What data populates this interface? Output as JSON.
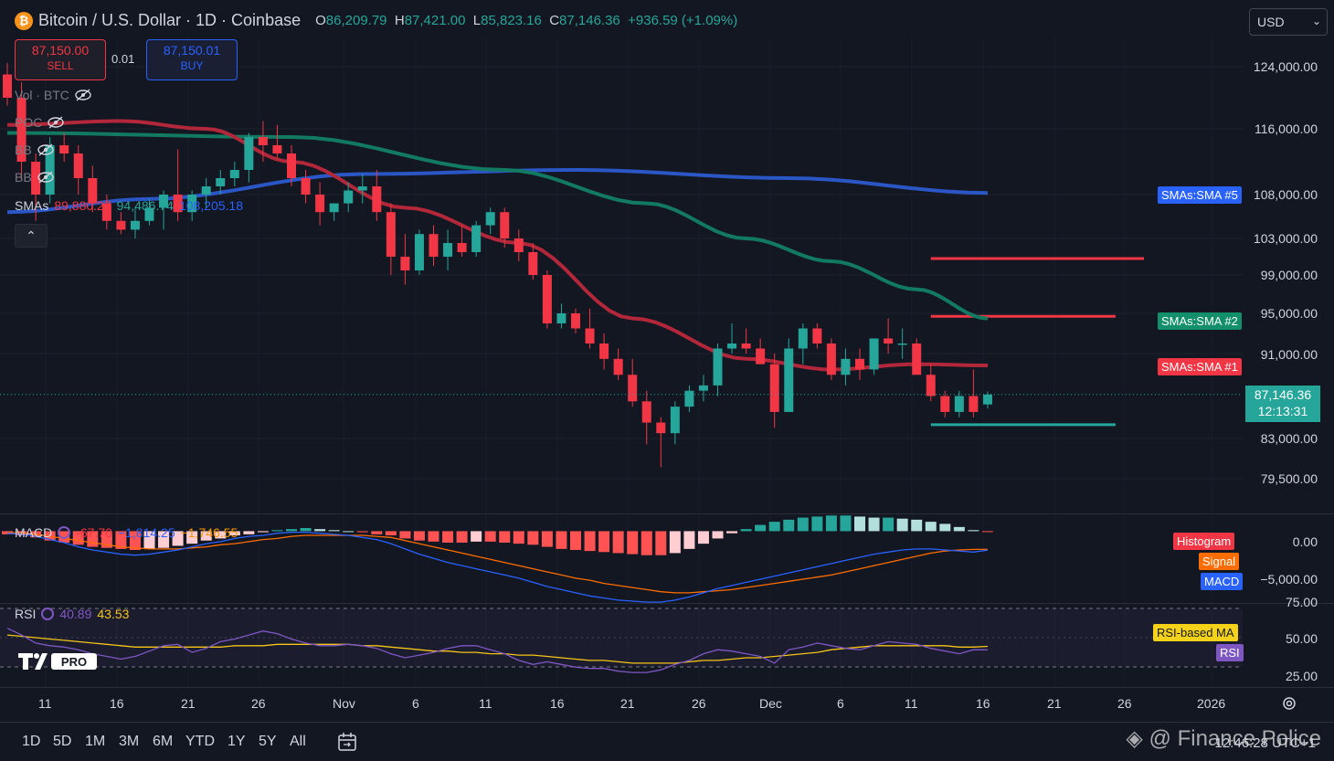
{
  "header": {
    "symbol_title": "Bitcoin / U.S. Dollar · 1D · Coinbase",
    "open_key": "O",
    "open": "86,209.79",
    "high_key": "H",
    "high": "87,421.00",
    "low_key": "L",
    "low": "85,823.16",
    "close_key": "C",
    "close": "87,146.36",
    "change": "+936.59 (+1.09%)",
    "currency": "USD"
  },
  "trade": {
    "sell_price": "87,150.00",
    "sell_label": "SELL",
    "buy_price": "87,150.01",
    "buy_label": "BUY",
    "spread": "0.01"
  },
  "indicators": {
    "vol": "Vol · BTC",
    "poc": "POC",
    "bb1": "BB",
    "bb2": "BB",
    "smas_label": "SMAs",
    "sma1": "89,880.27",
    "sma2": "94,486.74",
    "sma5": "108,205.18"
  },
  "price_axis": [
    "124,000.00",
    "116,000.00",
    "108,000.00",
    "103,000.00",
    "99,000.00",
    "95,000.00",
    "91,000.00",
    "83,000.00",
    "79,500.00"
  ],
  "tags": {
    "sma5": "SMAs:SMA #5",
    "sma2": "SMAs:SMA #2",
    "sma1": "SMAs:SMA #1",
    "current_price": "87,146.36",
    "countdown": "12:13:31"
  },
  "macd": {
    "label": "MACD",
    "v1": "-67.70",
    "v2": "−1,814.25",
    "v3": "−1,746.55",
    "axis_top": "0.00",
    "axis_bottom": "−5,000.00",
    "tag_hist": "Histogram",
    "tag_signal": "Signal",
    "tag_macd": "MACD"
  },
  "rsi": {
    "label": "RSI",
    "v1": "40.89",
    "v2": "43.53",
    "axis": [
      "75.00",
      "50.00",
      "25.00"
    ],
    "tag_ma": "RSI-based MA",
    "tag_rsi": "RSI",
    "logo_text": "PRO"
  },
  "time_axis": [
    "11",
    "16",
    "21",
    "26",
    "Nov",
    "6",
    "11",
    "16",
    "21",
    "26",
    "Dec",
    "6",
    "11",
    "16",
    "21",
    "26",
    "2026"
  ],
  "timeframes": [
    "1D",
    "5D",
    "1M",
    "3M",
    "6M",
    "YTD",
    "1Y",
    "5Y",
    "All"
  ],
  "watermark": "@ Finance Police",
  "clock": "12:46:28 UTC+1",
  "colors": {
    "up": "#26a69a",
    "down": "#f23645",
    "sma1": "#b2273a",
    "sma2": "#137a62",
    "sma5": "#2a56c6"
  },
  "chart_data": {
    "type": "candlestick",
    "candles_ohlc": [
      [
        123000,
        124500,
        119000,
        120000
      ],
      [
        120000,
        122000,
        110000,
        112000
      ],
      [
        112000,
        113000,
        105000,
        108000
      ],
      [
        108000,
        115000,
        107000,
        114000
      ],
      [
        114000,
        115500,
        112000,
        113000
      ],
      [
        113000,
        114000,
        108000,
        110000
      ],
      [
        110000,
        111500,
        106000,
        107000
      ],
      [
        107000,
        108000,
        104000,
        105000
      ],
      [
        105000,
        106000,
        103500,
        104000
      ],
      [
        104000,
        106500,
        103000,
        105000
      ],
      [
        105000,
        107500,
        104500,
        106500
      ],
      [
        106500,
        108500,
        104000,
        108000
      ],
      [
        108000,
        113500,
        105000,
        106000
      ],
      [
        106000,
        108500,
        105000,
        108000
      ],
      [
        108000,
        110000,
        106500,
        109000
      ],
      [
        109000,
        111000,
        108000,
        110000
      ],
      [
        110000,
        112000,
        109000,
        111000
      ],
      [
        111000,
        115500,
        109500,
        115000
      ],
      [
        115000,
        117000,
        112000,
        114000
      ],
      [
        114000,
        116500,
        112500,
        113000
      ],
      [
        113000,
        114000,
        109000,
        110000
      ],
      [
        110000,
        111000,
        107000,
        108000
      ],
      [
        108000,
        109500,
        104500,
        106000
      ],
      [
        106000,
        107000,
        105000,
        107000
      ],
      [
        107000,
        109500,
        106000,
        108500
      ],
      [
        108500,
        110500,
        107000,
        109000
      ],
      [
        109000,
        111000,
        105000,
        106000
      ],
      [
        106000,
        107000,
        99000,
        101000
      ],
      [
        101000,
        103500,
        98000,
        99500
      ],
      [
        99500,
        104000,
        99000,
        103500
      ],
      [
        103500,
        104500,
        100000,
        101000
      ],
      [
        101000,
        104000,
        99500,
        102500
      ],
      [
        102500,
        104500,
        101000,
        101500
      ],
      [
        101500,
        105000,
        101000,
        104500
      ],
      [
        104500,
        106500,
        103500,
        106000
      ],
      [
        106000,
        106500,
        102000,
        103000
      ],
      [
        103000,
        104000,
        100500,
        101500
      ],
      [
        101500,
        102500,
        98500,
        99000
      ],
      [
        99000,
        99500,
        93500,
        94000
      ],
      [
        94000,
        96000,
        93500,
        95000
      ],
      [
        95000,
        95500,
        93000,
        93500
      ],
      [
        93500,
        95500,
        91500,
        92000
      ],
      [
        92000,
        93000,
        89500,
        90500
      ],
      [
        90500,
        91500,
        88500,
        89000
      ],
      [
        89000,
        90500,
        86000,
        86500
      ],
      [
        86500,
        87500,
        82500,
        84500
      ],
      [
        84500,
        85000,
        80500,
        83500
      ],
      [
        83500,
        86500,
        82500,
        86000
      ],
      [
        86000,
        88000,
        85500,
        87500
      ],
      [
        87500,
        89000,
        86500,
        88000
      ],
      [
        88000,
        92000,
        87000,
        91500
      ],
      [
        91500,
        94000,
        91000,
        92000
      ],
      [
        92000,
        93500,
        91000,
        91500
      ],
      [
        91500,
        92500,
        90000,
        90000
      ],
      [
        90000,
        91000,
        84000,
        85500
      ],
      [
        85500,
        92500,
        85500,
        91500
      ],
      [
        91500,
        94000,
        90000,
        93500
      ],
      [
        93500,
        94000,
        91500,
        92000
      ],
      [
        92000,
        92500,
        88500,
        89000
      ],
      [
        89000,
        91500,
        88000,
        90500
      ],
      [
        90500,
        91500,
        88500,
        89500
      ],
      [
        89500,
        92500,
        89000,
        92500
      ],
      [
        92500,
        94500,
        91000,
        92000
      ],
      [
        92000,
        93500,
        90500,
        92000
      ],
      [
        92000,
        92500,
        89000,
        89000
      ],
      [
        89000,
        90000,
        86500,
        87000
      ],
      [
        87000,
        87500,
        85000,
        85500
      ],
      [
        85500,
        87500,
        85000,
        87000
      ],
      [
        87000,
        89500,
        85000,
        85500
      ],
      [
        86209.79,
        87421.0,
        85823.16,
        87146.36
      ]
    ],
    "sma1_points": [
      [
        0,
        116500
      ],
      [
        8,
        117000
      ],
      [
        14,
        116000
      ],
      [
        20,
        112000
      ],
      [
        28,
        106500
      ],
      [
        36,
        102500
      ],
      [
        44,
        94500
      ],
      [
        52,
        90500
      ],
      [
        58,
        89500
      ],
      [
        64,
        90000
      ],
      [
        69,
        89880.27
      ]
    ],
    "sma2_points": [
      [
        0,
        115500
      ],
      [
        20,
        115000
      ],
      [
        35,
        111000
      ],
      [
        45,
        107000
      ],
      [
        52,
        103000
      ],
      [
        58,
        100500
      ],
      [
        64,
        97500
      ],
      [
        69,
        94486.74
      ]
    ],
    "sma5_points": [
      [
        0,
        106000
      ],
      [
        10,
        107500
      ],
      [
        25,
        110500
      ],
      [
        40,
        111000
      ],
      [
        55,
        110000
      ],
      [
        69,
        108205.18
      ]
    ],
    "horizontal_lines": [
      {
        "price": 100800,
        "from": 65,
        "to": 80,
        "color": "red"
      },
      {
        "price": 94700,
        "from": 65,
        "to": 78,
        "color": "red"
      },
      {
        "price": 84300,
        "from": 65,
        "to": 78,
        "color": "green"
      }
    ],
    "macd_hist": [
      -300,
      -400,
      -600,
      -900,
      -1100,
      -1300,
      -1500,
      -1600,
      -1700,
      -1800,
      -1700,
      -1600,
      -1400,
      -1200,
      -900,
      -700,
      -400,
      -300,
      -100,
      100,
      200,
      300,
      200,
      100,
      0,
      -100,
      -300,
      -400,
      -700,
      -900,
      -1000,
      -1100,
      -1100,
      -1000,
      -1000,
      -1100,
      -1200,
      -1300,
      -1500,
      -1700,
      -1800,
      -1900,
      -2000,
      -2100,
      -2200,
      -2300,
      -2300,
      -2100,
      -1700,
      -1200,
      -700,
      -200,
      200,
      600,
      900,
      1100,
      1300,
      1400,
      1500,
      1500,
      1400,
      1300,
      1300,
      1200,
      1100,
      900,
      700,
      400,
      100,
      -67.7
    ],
    "macd_line": [
      -200,
      -300,
      -500,
      -800,
      -1100,
      -1500,
      -1800,
      -2000,
      -2200,
      -2300,
      -2200,
      -2000,
      -1800,
      -1500,
      -1200,
      -1000,
      -700,
      -500,
      -400,
      -200,
      -100,
      -100,
      -200,
      -300,
      -400,
      -600,
      -800,
      -1200,
      -1700,
      -2200,
      -2600,
      -3000,
      -3300,
      -3600,
      -3900,
      -4200,
      -4500,
      -4900,
      -5300,
      -5600,
      -5900,
      -6200,
      -6400,
      -6600,
      -6700,
      -6800,
      -6800,
      -6600,
      -6300,
      -5900,
      -5500,
      -5200,
      -4900,
      -4600,
      -4300,
      -4000,
      -3700,
      -3400,
      -3100,
      -2800,
      -2500,
      -2200,
      -2000,
      -1800,
      -1700,
      -1700,
      -1800,
      -1900,
      -2000,
      -1814.25
    ],
    "signal_line": [
      -100,
      -200,
      -300,
      -500,
      -700,
      -900,
      -1100,
      -1300,
      -1500,
      -1600,
      -1700,
      -1700,
      -1700,
      -1600,
      -1500,
      -1300,
      -1200,
      -1000,
      -800,
      -700,
      -500,
      -400,
      -400,
      -400,
      -400,
      -400,
      -500,
      -600,
      -900,
      -1200,
      -1500,
      -1800,
      -2100,
      -2400,
      -2700,
      -3000,
      -3300,
      -3600,
      -3900,
      -4200,
      -4500,
      -4700,
      -5000,
      -5200,
      -5400,
      -5600,
      -5800,
      -5900,
      -5900,
      -5800,
      -5700,
      -5600,
      -5400,
      -5200,
      -5000,
      -4800,
      -4600,
      -4400,
      -4200,
      -3900,
      -3600,
      -3300,
      -3000,
      -2700,
      -2400,
      -2100,
      -1900,
      -1800,
      -1750,
      -1746.55
    ],
    "macd_range": [
      -6000,
      1000
    ],
    "rsi_line": [
      57,
      52,
      46,
      44,
      43,
      41,
      38,
      36,
      34,
      36,
      40,
      44,
      45,
      39,
      42,
      47,
      49,
      52,
      55,
      53,
      49,
      46,
      44,
      44,
      45,
      44,
      42,
      38,
      35,
      37,
      39,
      42,
      44,
      44,
      41,
      38,
      33,
      30,
      32,
      30,
      28,
      27,
      27,
      25,
      24,
      24,
      26,
      30,
      33,
      38,
      41,
      40,
      38,
      36,
      31,
      41,
      43,
      46,
      44,
      42,
      41,
      44,
      47,
      46,
      45,
      42,
      40,
      38,
      41,
      40.89
    ],
    "rsi_ma": [
      52,
      51,
      50,
      49,
      48,
      47,
      46,
      45,
      44,
      43,
      43,
      43,
      43,
      43,
      43,
      43,
      44,
      44,
      44,
      45,
      45,
      45,
      45,
      45,
      45,
      44,
      44,
      43,
      42,
      41,
      40,
      40,
      39,
      39,
      38,
      38,
      37,
      37,
      36,
      35,
      34,
      33,
      33,
      32,
      31,
      31,
      31,
      31,
      32,
      33,
      33,
      34,
      35,
      35,
      36,
      37,
      38,
      39,
      41,
      42,
      43,
      44,
      44,
      44,
      44,
      44,
      44,
      43,
      43,
      43.53
    ],
    "rsi_range": [
      20,
      80
    ]
  }
}
